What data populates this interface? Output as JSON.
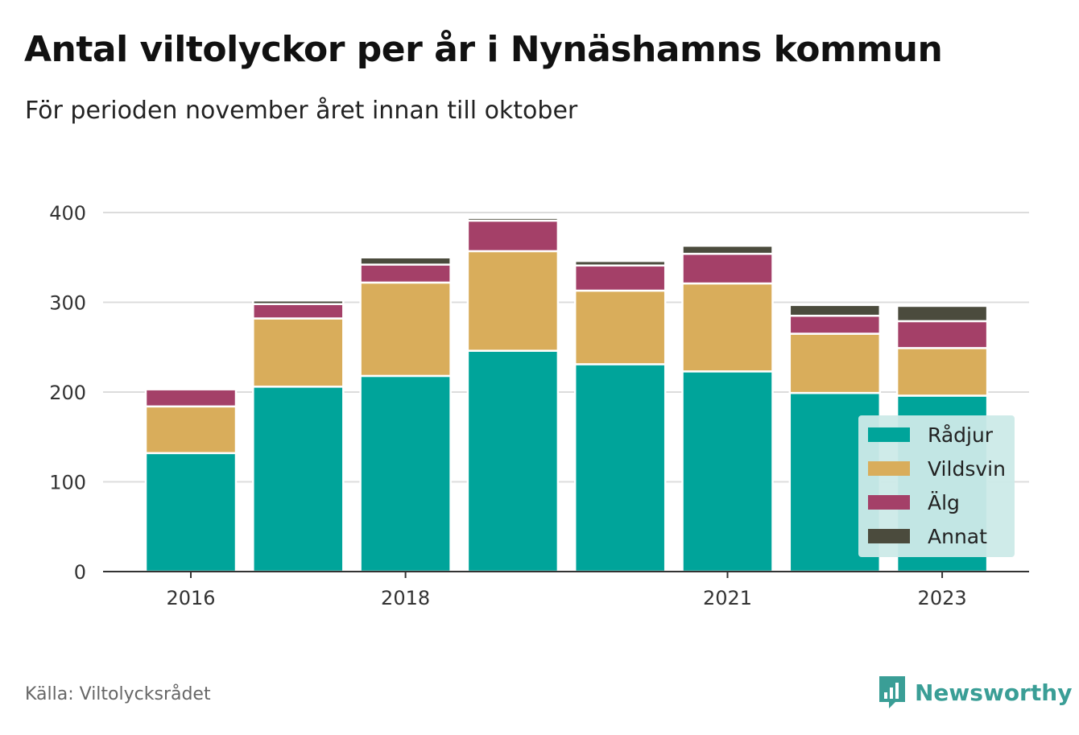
{
  "header": {
    "title": "Antal viltolyckor per år i Nynäshamns kommun",
    "subtitle": "För perioden november året innan till oktober"
  },
  "footer": {
    "source": "Källa: Viltolycksrådet",
    "brand": "Newsworthy",
    "brand_icon": "bar-chart-speech-bubble-icon",
    "brand_color": "#3a9e96"
  },
  "chart_data": {
    "type": "bar",
    "stacked": true,
    "categories": [
      "2016",
      "2017",
      "2018",
      "2019",
      "2020",
      "2021",
      "2022",
      "2023"
    ],
    "x_tick_labels": [
      "2016",
      "",
      "2018",
      "",
      "",
      "2021",
      "",
      "2023"
    ],
    "series": [
      {
        "name": "Rådjur",
        "color": "#00a49a",
        "values": [
          132,
          206,
          218,
          246,
          231,
          223,
          199,
          196
        ]
      },
      {
        "name": "Vildsvin",
        "color": "#d9ad5b",
        "values": [
          52,
          76,
          104,
          111,
          82,
          98,
          66,
          53
        ]
      },
      {
        "name": "Älg",
        "color": "#a44068",
        "values": [
          19,
          16,
          20,
          34,
          28,
          33,
          20,
          30
        ]
      },
      {
        "name": "Annat",
        "color": "#4b4b3d",
        "values": [
          0,
          4,
          8,
          3,
          5,
          9,
          12,
          17
        ]
      }
    ],
    "ylim": [
      0,
      400
    ],
    "y_ticks": [
      0,
      100,
      200,
      300,
      400
    ],
    "xlabel": "",
    "ylabel": "",
    "grid": true,
    "legend_position": "bottom-right"
  }
}
